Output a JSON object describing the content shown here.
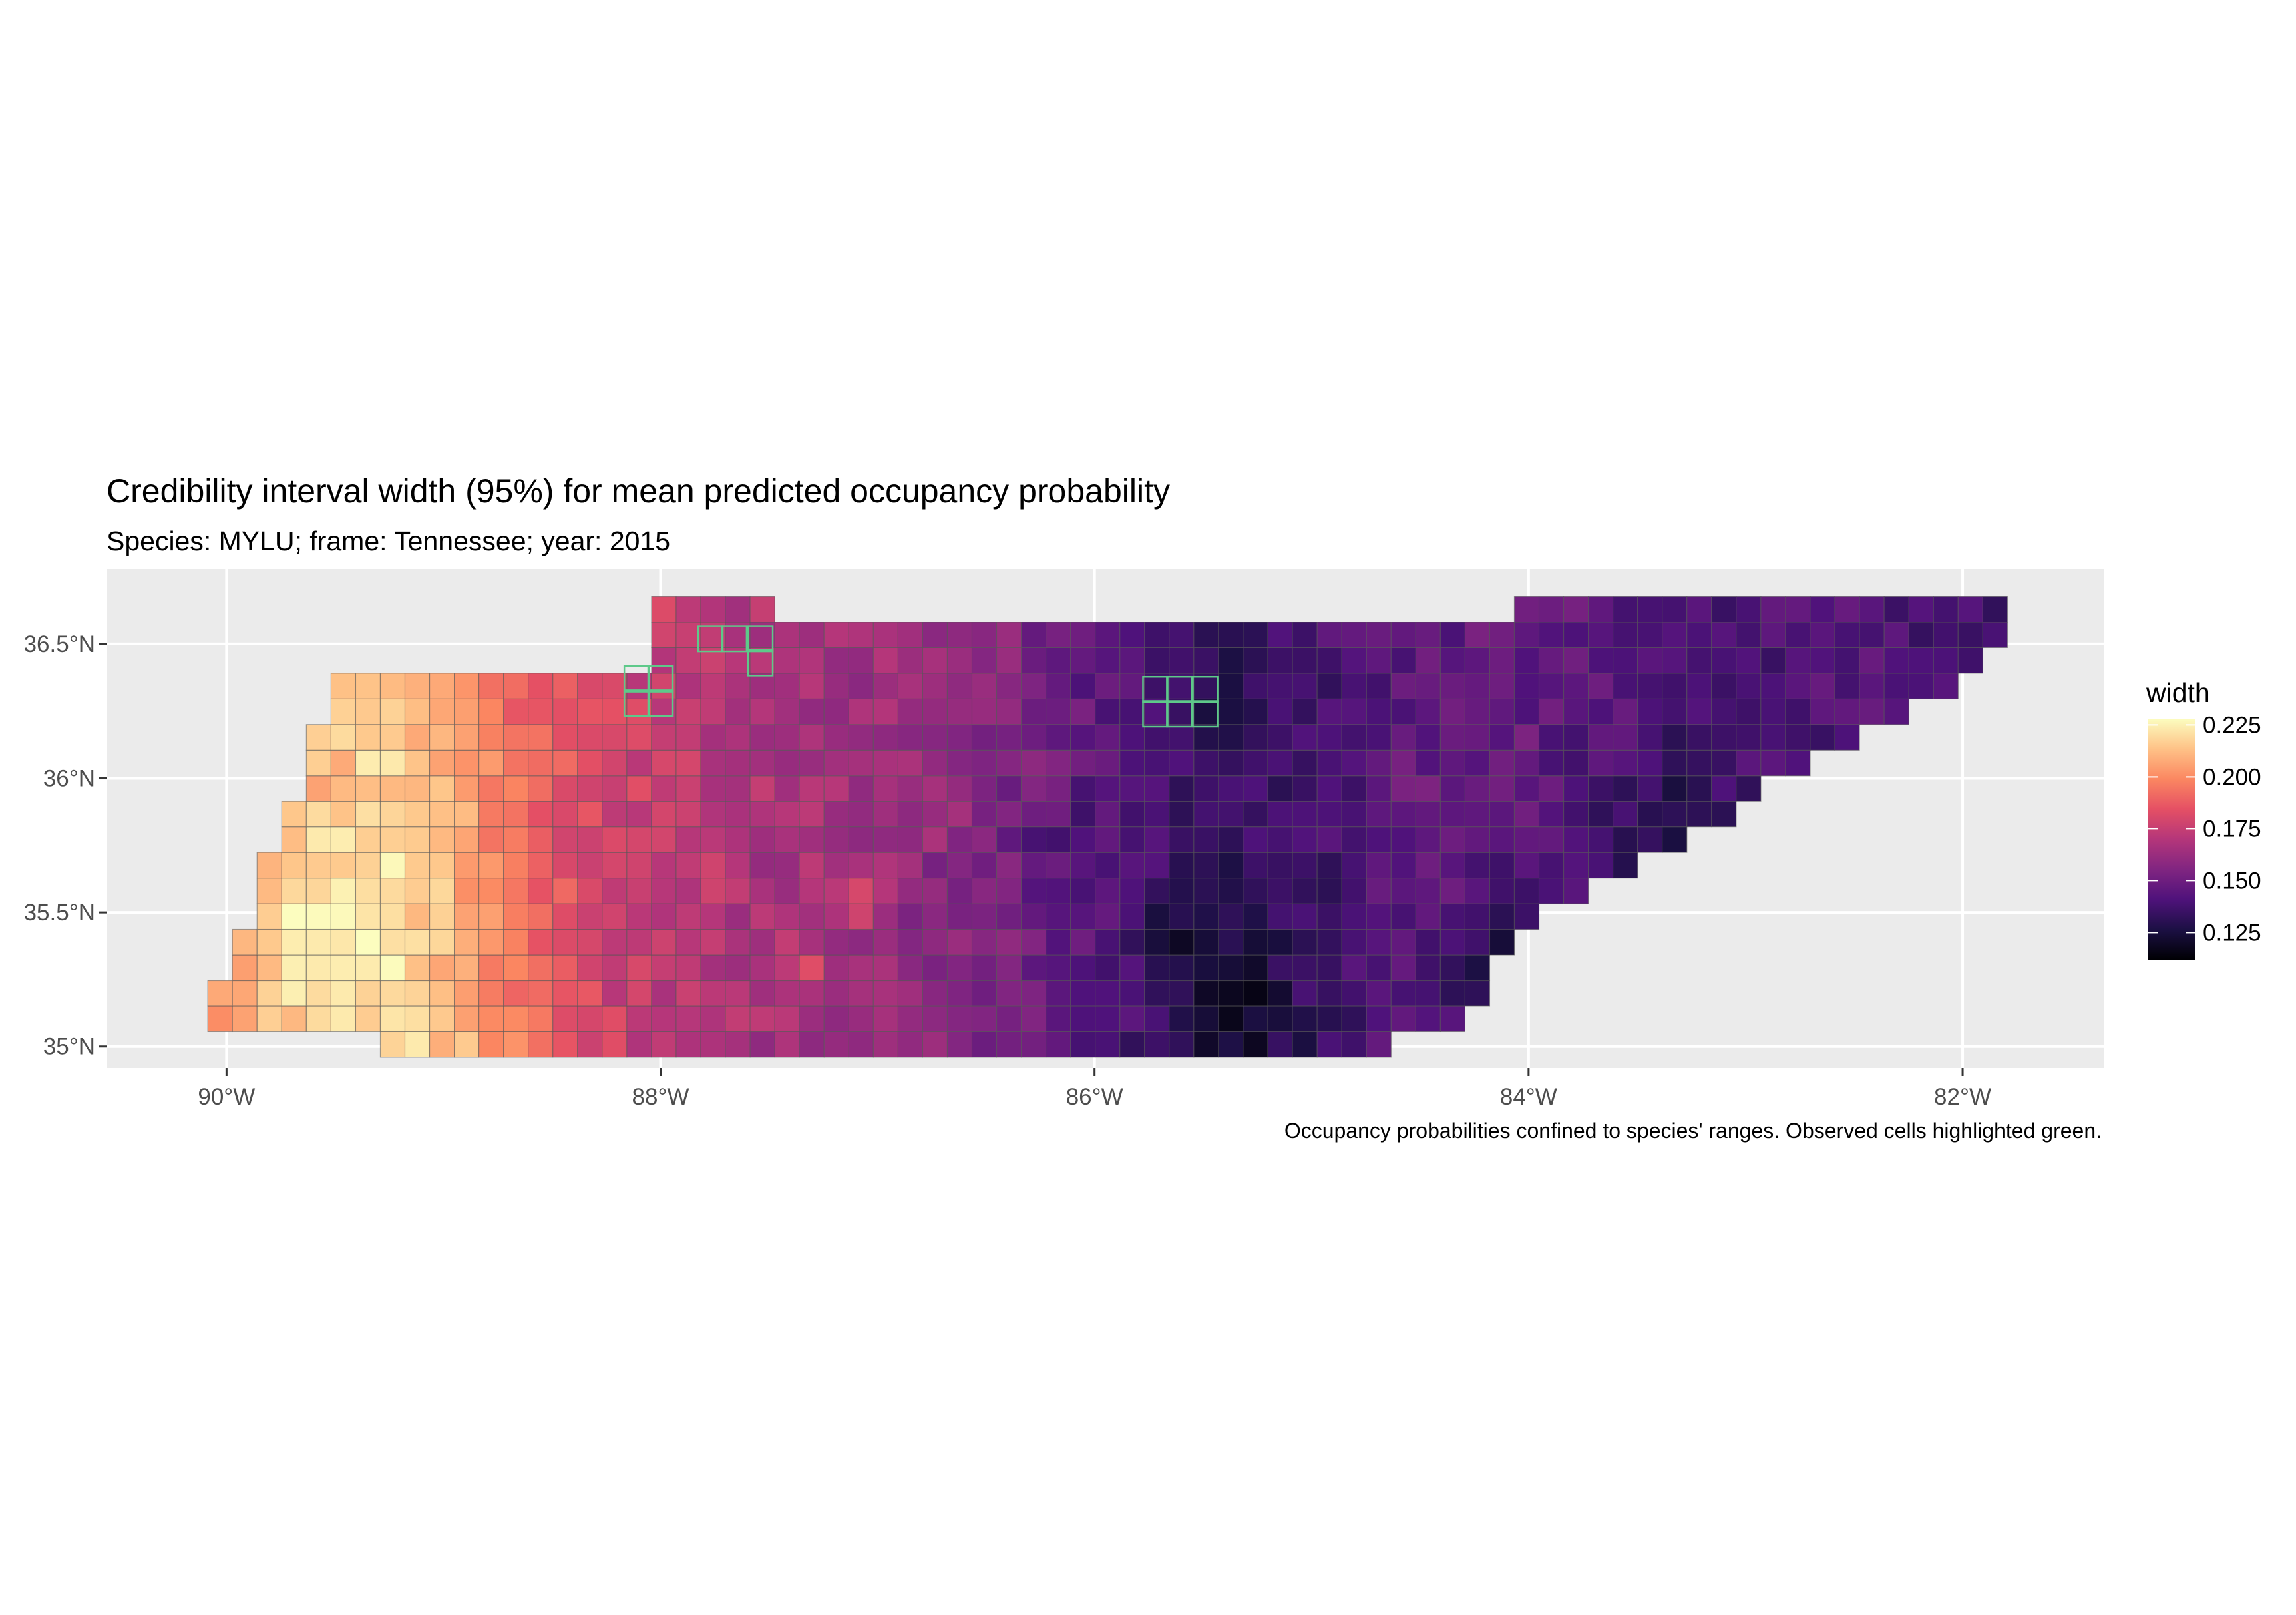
{
  "chart_data": {
    "type": "heatmap",
    "title": "Credibility interval width (95%) for mean predicted occupancy probability",
    "subtitle": "Species: MYLU; frame: Tennessee; year: 2015",
    "caption": "Occupancy probabilities confined to species' ranges. Observed cells highlighted green.",
    "legend": {
      "title": "width",
      "placement": "right",
      "ticks": [
        0.125,
        0.15,
        0.175,
        0.2,
        0.225
      ],
      "tick_labels": [
        "0.125",
        "0.150",
        "0.175",
        "0.200",
        "0.225"
      ],
      "range": [
        0.112,
        0.228
      ]
    },
    "colors": {
      "panel": "#ebebeb",
      "grid": "#ffffff",
      "observed_outline": "#5ec98a",
      "cell_outline": "#555555",
      "palette": [
        "#000004",
        "#1c1044",
        "#4f127b",
        "#812581",
        "#b5367a",
        "#e55064",
        "#fb8761",
        "#fec287",
        "#fcfdbf"
      ]
    },
    "x_axis": {
      "unit": "degrees longitude",
      "range": [
        -90.55,
        -81.35
      ],
      "ticks": [
        -90,
        -88,
        -86,
        -84,
        -82
      ],
      "tick_labels": [
        "90°W",
        "88°W",
        "86°W",
        "84°W",
        "82°W"
      ]
    },
    "y_axis": {
      "unit": "degrees latitude",
      "range": [
        34.92,
        36.78
      ],
      "ticks": [
        35,
        35.5,
        36,
        36.5
      ],
      "tick_labels": [
        "35°N",
        "35.5°N",
        "36°N",
        "36.5°N"
      ]
    },
    "grid": true,
    "cell_size_deg": {
      "lon": 0.1136,
      "lat": 0.0954
    },
    "region_polygon_lonlat": [
      [
        -90.12,
        35.04
      ],
      [
        -90.08,
        35.14
      ],
      [
        -89.95,
        35.4
      ],
      [
        -89.8,
        35.71
      ],
      [
        -89.62,
        36.0
      ],
      [
        -89.52,
        36.4
      ],
      [
        -89.53,
        36.43
      ],
      [
        -88.07,
        36.38
      ],
      [
        -88.07,
        36.65
      ],
      [
        -87.2,
        36.62
      ],
      [
        -85.8,
        36.59
      ],
      [
        -84.7,
        36.6
      ],
      [
        -83.6,
        36.65
      ],
      [
        -82.9,
        36.68
      ],
      [
        -81.9,
        36.67
      ],
      [
        -81.75,
        36.66
      ],
      [
        -81.85,
        36.45
      ],
      [
        -82.2,
        36.25
      ],
      [
        -82.7,
        36.05
      ],
      [
        -83.4,
        35.7
      ],
      [
        -84.05,
        35.45
      ],
      [
        -84.3,
        35.1
      ],
      [
        -84.6,
        35.0
      ],
      [
        -86.1,
        35.0
      ],
      [
        -88.2,
        34.98
      ],
      [
        -89.7,
        35.02
      ]
    ],
    "value_model": {
      "base": [
        [
          -90.0,
          0.2
        ],
        [
          -89.3,
          0.218
        ],
        [
          -89.0,
          0.21
        ],
        [
          -88.6,
          0.19
        ],
        [
          -88.2,
          0.178
        ],
        [
          -87.5,
          0.168
        ],
        [
          -87.0,
          0.163
        ],
        [
          -86.4,
          0.156
        ],
        [
          -86.0,
          0.145
        ],
        [
          -85.4,
          0.134
        ],
        [
          -85.0,
          0.137
        ],
        [
          -84.6,
          0.144
        ],
        [
          -84.0,
          0.147
        ],
        [
          -83.5,
          0.141
        ],
        [
          -83.0,
          0.138
        ],
        [
          -82.5,
          0.142
        ],
        [
          -82.0,
          0.137
        ],
        [
          -81.8,
          0.135
        ]
      ],
      "hotspots": [
        {
          "lon": -89.6,
          "lat": 35.45,
          "radius_deg": 0.35,
          "delta": 0.012
        },
        {
          "lon": -85.4,
          "lat": 35.15,
          "radius_deg": 0.3,
          "delta": -0.014
        },
        {
          "lon": -85.65,
          "lat": 35.45,
          "radius_deg": 0.2,
          "delta": -0.01
        },
        {
          "lon": -84.15,
          "lat": 35.35,
          "radius_deg": 0.25,
          "delta": -0.015
        },
        {
          "lon": -83.4,
          "lat": 35.85,
          "radius_deg": 0.25,
          "delta": -0.012
        },
        {
          "lon": -86.2,
          "lat": 35.75,
          "radius_deg": 0.2,
          "delta": -0.008
        },
        {
          "lon": -87.1,
          "lat": 35.55,
          "radius_deg": 0.12,
          "delta": 0.012
        },
        {
          "lon": -86.85,
          "lat": 35.95,
          "radius_deg": 0.15,
          "delta": 0.006
        },
        {
          "lon": -84.55,
          "lat": 35.95,
          "radius_deg": 0.3,
          "delta": 0.004
        },
        {
          "lon": -87.35,
          "lat": 35.3,
          "radius_deg": 0.12,
          "delta": 0.014
        },
        {
          "lon": -84.45,
          "lat": 35.55,
          "radius_deg": 0.15,
          "delta": 0.006
        },
        {
          "lon": -85.5,
          "lat": 36.35,
          "radius_deg": 0.25,
          "delta": -0.008
        }
      ]
    },
    "observed_cells_lonlat": [
      [
        -88.11,
        36.37
      ],
      [
        -88.0,
        36.37
      ],
      [
        -88.11,
        36.28
      ],
      [
        -88.0,
        36.28
      ],
      [
        -87.77,
        36.52
      ],
      [
        -87.66,
        36.52
      ],
      [
        -87.54,
        36.52
      ],
      [
        -87.54,
        36.43
      ],
      [
        -85.72,
        36.33
      ],
      [
        -85.61,
        36.33
      ],
      [
        -85.49,
        36.33
      ],
      [
        -85.72,
        36.24
      ],
      [
        -85.61,
        36.24
      ],
      [
        -85.49,
        36.24
      ]
    ]
  }
}
